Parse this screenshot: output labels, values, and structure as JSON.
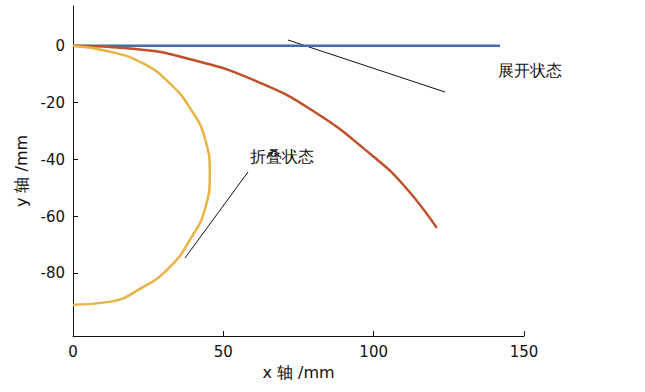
{
  "chart_data": {
    "type": "line",
    "x_label": "x 轴 /mm",
    "y_label": "y 轴 /mm",
    "xlim": [
      0,
      150
    ],
    "xticks": [
      0,
      50,
      100,
      150
    ],
    "ylim": [
      -102,
      14
    ],
    "yticks": [
      -80,
      -60,
      -40,
      -20,
      0
    ],
    "grid": false,
    "annotations": [
      "展开状态",
      "折叠状态"
    ],
    "series": [
      {
        "color": "#3f6fa6",
        "x": [
          0,
          142
        ],
        "values": [
          0,
          0
        ]
      },
      {
        "color": "#c0502a",
        "x": [
          0,
          20,
          40,
          60,
          80,
          100,
          110,
          121
        ],
        "values": [
          0,
          -1,
          -5,
          -12,
          -23,
          -39,
          -49,
          -64
        ]
      },
      {
        "color": "#e8b445",
        "x": [
          0,
          12,
          23,
          32,
          39,
          44,
          45.5,
          44,
          39,
          32,
          23,
          12,
          0
        ],
        "values": [
          0,
          -2,
          -6,
          -13,
          -22,
          -33,
          -45,
          -57,
          -68,
          -78,
          -85,
          -90,
          -91
        ]
      }
    ]
  }
}
